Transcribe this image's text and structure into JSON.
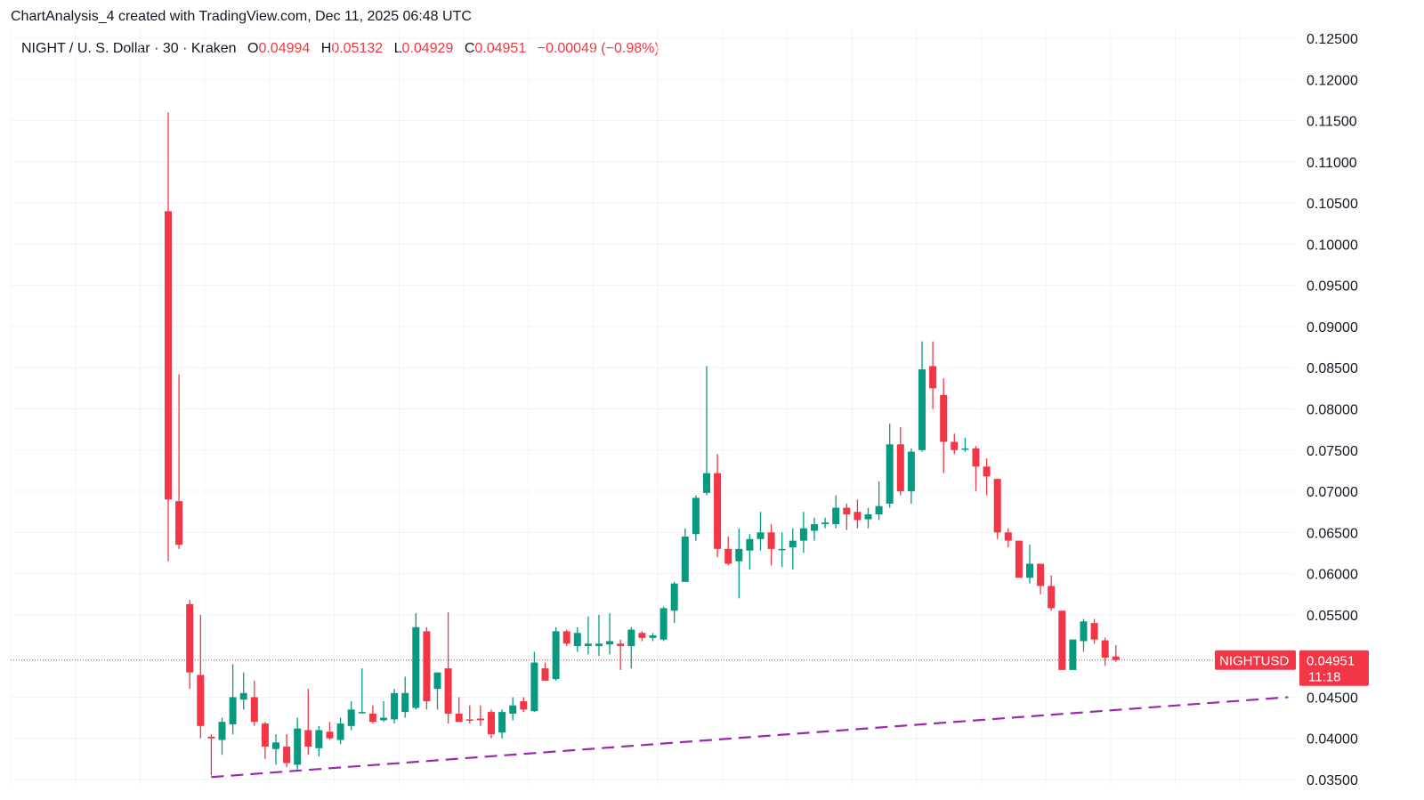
{
  "header": {
    "watermark": "ChartAnalysis_4 created with TradingView.com, Dec 11, 2025 06:48 UTC"
  },
  "legend": {
    "symbol": "NIGHT / U. S. Dollar · 30 · Kraken",
    "o_label": "O",
    "o_value": "0.04994",
    "h_label": "H",
    "h_value": "0.05132",
    "l_label": "L",
    "l_value": "0.04929",
    "c_label": "C",
    "c_value": "0.04951",
    "change": "−0.00049 (−0.98%)"
  },
  "price_tag": {
    "ticker": "NIGHTUSD",
    "price": "0.04951",
    "countdown": "11:18"
  },
  "colors": {
    "up": "#089981",
    "down": "#f23645",
    "grid": "#f0f3fa",
    "trendline": "#9c27b0",
    "price_line": "#f23645"
  },
  "chart_data": {
    "type": "candlestick",
    "y_axis": {
      "min": 0.035,
      "max": 0.125,
      "step": 0.005,
      "ticks": [
        "0.12500",
        "0.12000",
        "0.11500",
        "0.11000",
        "0.10500",
        "0.10000",
        "0.09500",
        "0.09000",
        "0.08500",
        "0.08000",
        "0.07500",
        "0.07000",
        "0.06500",
        "0.06000",
        "0.05500",
        "0.04500",
        "0.04000",
        "0.03500"
      ]
    },
    "grid": true,
    "last_price": 0.04951,
    "candles": [
      {
        "o": 0.104,
        "h": 0.116,
        "l": 0.0615,
        "c": 0.069
      },
      {
        "o": 0.0688,
        "h": 0.0842,
        "l": 0.063,
        "c": 0.0635
      },
      {
        "o": 0.0563,
        "h": 0.0568,
        "l": 0.046,
        "c": 0.048
      },
      {
        "o": 0.0477,
        "h": 0.055,
        "l": 0.04,
        "c": 0.0415
      },
      {
        "o": 0.0402,
        "h": 0.0405,
        "l": 0.0355,
        "c": 0.04
      },
      {
        "o": 0.0398,
        "h": 0.0425,
        "l": 0.038,
        "c": 0.042
      },
      {
        "o": 0.0417,
        "h": 0.049,
        "l": 0.0405,
        "c": 0.045
      },
      {
        "o": 0.0447,
        "h": 0.048,
        "l": 0.0435,
        "c": 0.0455
      },
      {
        "o": 0.045,
        "h": 0.047,
        "l": 0.0415,
        "c": 0.042
      },
      {
        "o": 0.0418,
        "h": 0.042,
        "l": 0.0375,
        "c": 0.039
      },
      {
        "o": 0.0387,
        "h": 0.0405,
        "l": 0.0368,
        "c": 0.0395
      },
      {
        "o": 0.039,
        "h": 0.0405,
        "l": 0.0365,
        "c": 0.037
      },
      {
        "o": 0.0368,
        "h": 0.0425,
        "l": 0.0362,
        "c": 0.0412
      },
      {
        "o": 0.041,
        "h": 0.046,
        "l": 0.038,
        "c": 0.039
      },
      {
        "o": 0.0388,
        "h": 0.0415,
        "l": 0.0378,
        "c": 0.041
      },
      {
        "o": 0.0408,
        "h": 0.042,
        "l": 0.0398,
        "c": 0.04
      },
      {
        "o": 0.0398,
        "h": 0.0425,
        "l": 0.0393,
        "c": 0.0418
      },
      {
        "o": 0.0415,
        "h": 0.0445,
        "l": 0.041,
        "c": 0.0435
      },
      {
        "o": 0.0432,
        "h": 0.0485,
        "l": 0.043,
        "c": 0.0432
      },
      {
        "o": 0.043,
        "h": 0.044,
        "l": 0.0418,
        "c": 0.042
      },
      {
        "o": 0.0422,
        "h": 0.0445,
        "l": 0.042,
        "c": 0.0425
      },
      {
        "o": 0.0423,
        "h": 0.046,
        "l": 0.0418,
        "c": 0.0455
      },
      {
        "o": 0.0432,
        "h": 0.0475,
        "l": 0.0425,
        "c": 0.0455
      },
      {
        "o": 0.0437,
        "h": 0.0552,
        "l": 0.0435,
        "c": 0.0535
      },
      {
        "o": 0.053,
        "h": 0.0535,
        "l": 0.0435,
        "c": 0.0445
      },
      {
        "o": 0.046,
        "h": 0.048,
        "l": 0.0435,
        "c": 0.048
      },
      {
        "o": 0.0485,
        "h": 0.0553,
        "l": 0.0418,
        "c": 0.043
      },
      {
        "o": 0.043,
        "h": 0.045,
        "l": 0.042,
        "c": 0.042
      },
      {
        "o": 0.0423,
        "h": 0.044,
        "l": 0.0418,
        "c": 0.0422
      },
      {
        "o": 0.0424,
        "h": 0.044,
        "l": 0.0415,
        "c": 0.0422
      },
      {
        "o": 0.0432,
        "h": 0.0435,
        "l": 0.04,
        "c": 0.0405
      },
      {
        "o": 0.0407,
        "h": 0.0435,
        "l": 0.04,
        "c": 0.0432
      },
      {
        "o": 0.043,
        "h": 0.045,
        "l": 0.0422,
        "c": 0.044
      },
      {
        "o": 0.0445,
        "h": 0.045,
        "l": 0.0432,
        "c": 0.0435
      },
      {
        "o": 0.0433,
        "h": 0.0505,
        "l": 0.0432,
        "c": 0.0492
      },
      {
        "o": 0.0485,
        "h": 0.0492,
        "l": 0.047,
        "c": 0.047
      },
      {
        "o": 0.0472,
        "h": 0.0535,
        "l": 0.047,
        "c": 0.053
      },
      {
        "o": 0.053,
        "h": 0.0532,
        "l": 0.0512,
        "c": 0.0515
      },
      {
        "o": 0.0512,
        "h": 0.0535,
        "l": 0.0505,
        "c": 0.0528
      },
      {
        "o": 0.0512,
        "h": 0.0548,
        "l": 0.0502,
        "c": 0.0515
      },
      {
        "o": 0.0512,
        "h": 0.055,
        "l": 0.05,
        "c": 0.0515
      },
      {
        "o": 0.0514,
        "h": 0.0552,
        "l": 0.0502,
        "c": 0.0518
      },
      {
        "o": 0.0515,
        "h": 0.052,
        "l": 0.0483,
        "c": 0.0512
      },
      {
        "o": 0.0512,
        "h": 0.0535,
        "l": 0.0485,
        "c": 0.0532
      },
      {
        "o": 0.0528,
        "h": 0.053,
        "l": 0.0518,
        "c": 0.0522
      },
      {
        "o": 0.0522,
        "h": 0.0528,
        "l": 0.0518,
        "c": 0.0525
      },
      {
        "o": 0.052,
        "h": 0.056,
        "l": 0.0518,
        "c": 0.0558
      },
      {
        "o": 0.0555,
        "h": 0.059,
        "l": 0.054,
        "c": 0.0588
      },
      {
        "o": 0.059,
        "h": 0.0655,
        "l": 0.059,
        "c": 0.0645
      },
      {
        "o": 0.0648,
        "h": 0.0695,
        "l": 0.064,
        "c": 0.0692
      },
      {
        "o": 0.0698,
        "h": 0.0852,
        "l": 0.0695,
        "c": 0.0722
      },
      {
        "o": 0.0722,
        "h": 0.0745,
        "l": 0.062,
        "c": 0.063
      },
      {
        "o": 0.063,
        "h": 0.0645,
        "l": 0.061,
        "c": 0.0612
      },
      {
        "o": 0.0615,
        "h": 0.0655,
        "l": 0.057,
        "c": 0.063
      },
      {
        "o": 0.0628,
        "h": 0.0648,
        "l": 0.0605,
        "c": 0.0642
      },
      {
        "o": 0.0642,
        "h": 0.0675,
        "l": 0.0628,
        "c": 0.065
      },
      {
        "o": 0.065,
        "h": 0.066,
        "l": 0.061,
        "c": 0.063
      },
      {
        "o": 0.063,
        "h": 0.065,
        "l": 0.0608,
        "c": 0.063
      },
      {
        "o": 0.0632,
        "h": 0.0655,
        "l": 0.0605,
        "c": 0.064
      },
      {
        "o": 0.064,
        "h": 0.0675,
        "l": 0.0625,
        "c": 0.0655
      },
      {
        "o": 0.0652,
        "h": 0.0668,
        "l": 0.064,
        "c": 0.066
      },
      {
        "o": 0.066,
        "h": 0.0668,
        "l": 0.0655,
        "c": 0.0662
      },
      {
        "o": 0.066,
        "h": 0.0695,
        "l": 0.0655,
        "c": 0.068
      },
      {
        "o": 0.068,
        "h": 0.0685,
        "l": 0.0653,
        "c": 0.0672
      },
      {
        "o": 0.0675,
        "h": 0.069,
        "l": 0.0655,
        "c": 0.0665
      },
      {
        "o": 0.0666,
        "h": 0.068,
        "l": 0.0655,
        "c": 0.0672
      },
      {
        "o": 0.0672,
        "h": 0.0712,
        "l": 0.0665,
        "c": 0.0682
      },
      {
        "o": 0.0685,
        "h": 0.0782,
        "l": 0.068,
        "c": 0.0757
      },
      {
        "o": 0.0757,
        "h": 0.0778,
        "l": 0.0695,
        "c": 0.07
      },
      {
        "o": 0.07,
        "h": 0.0752,
        "l": 0.0685,
        "c": 0.0748
      },
      {
        "o": 0.075,
        "h": 0.0882,
        "l": 0.0748,
        "c": 0.0848
      },
      {
        "o": 0.0852,
        "h": 0.0882,
        "l": 0.08,
        "c": 0.0825
      },
      {
        "o": 0.0817,
        "h": 0.0837,
        "l": 0.0722,
        "c": 0.076
      },
      {
        "o": 0.076,
        "h": 0.077,
        "l": 0.0745,
        "c": 0.075
      },
      {
        "o": 0.0752,
        "h": 0.0765,
        "l": 0.0748,
        "c": 0.0752
      },
      {
        "o": 0.0752,
        "h": 0.0755,
        "l": 0.07,
        "c": 0.073
      },
      {
        "o": 0.073,
        "h": 0.074,
        "l": 0.0695,
        "c": 0.0718
      },
      {
        "o": 0.0715,
        "h": 0.0715,
        "l": 0.0642,
        "c": 0.065
      },
      {
        "o": 0.065,
        "h": 0.0655,
        "l": 0.0632,
        "c": 0.064
      },
      {
        "o": 0.064,
        "h": 0.0638,
        "l": 0.0595,
        "c": 0.0595
      },
      {
        "o": 0.0595,
        "h": 0.0635,
        "l": 0.0588,
        "c": 0.0612
      },
      {
        "o": 0.0612,
        "h": 0.0612,
        "l": 0.0575,
        "c": 0.0585
      },
      {
        "o": 0.0585,
        "h": 0.0598,
        "l": 0.0555,
        "c": 0.0558
      },
      {
        "o": 0.0555,
        "h": 0.0555,
        "l": 0.0483,
        "c": 0.0483
      },
      {
        "o": 0.0483,
        "h": 0.052,
        "l": 0.0483,
        "c": 0.052
      },
      {
        "o": 0.0518,
        "h": 0.0545,
        "l": 0.0505,
        "c": 0.0542
      },
      {
        "o": 0.054,
        "h": 0.0545,
        "l": 0.0515,
        "c": 0.052
      },
      {
        "o": 0.0519,
        "h": 0.0522,
        "l": 0.0488,
        "c": 0.0498
      },
      {
        "o": 0.04994,
        "h": 0.05132,
        "l": 0.04929,
        "c": 0.04951
      }
    ],
    "trendline": {
      "from": {
        "bar": 4,
        "price": 0.0353
      },
      "to": {
        "bar": 104,
        "price": 0.045
      }
    }
  }
}
